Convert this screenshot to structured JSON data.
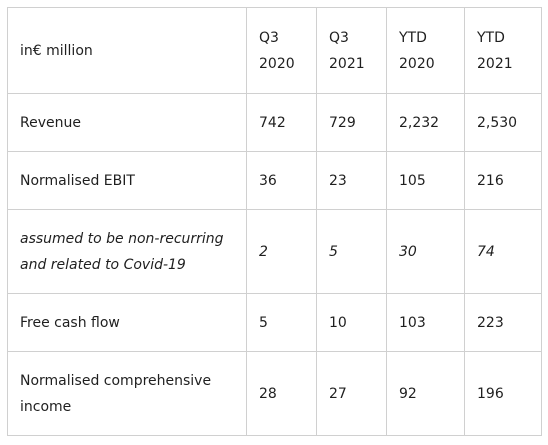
{
  "table": {
    "header": {
      "label": "in€ million",
      "columns": [
        {
          "line1": "Q3",
          "line2": "2020"
        },
        {
          "line1": "Q3",
          "line2": "2021"
        },
        {
          "line1": "YTD",
          "line2": "2020"
        },
        {
          "line1": "YTD",
          "line2": "2021"
        }
      ]
    },
    "rows": [
      {
        "label_line1": "Revenue",
        "label_line2": "",
        "values": [
          "742",
          "729",
          "2,232",
          "2,530"
        ]
      },
      {
        "label_line1": "Normalised EBIT",
        "label_line2": "",
        "values": [
          "36",
          "23",
          "105",
          "216"
        ]
      },
      {
        "label_line1": "assumed to be non-recurring",
        "label_line2": "and related to Covid-19",
        "values": [
          "2",
          "5",
          "30",
          "74"
        ]
      },
      {
        "label_line1": "Free cash flow",
        "label_line2": "",
        "values": [
          "5",
          "10",
          "103",
          "223"
        ]
      },
      {
        "label_line1": "Normalised comprehensive",
        "label_line2": "income",
        "values": [
          "28",
          "27",
          "92",
          "196"
        ]
      }
    ]
  }
}
